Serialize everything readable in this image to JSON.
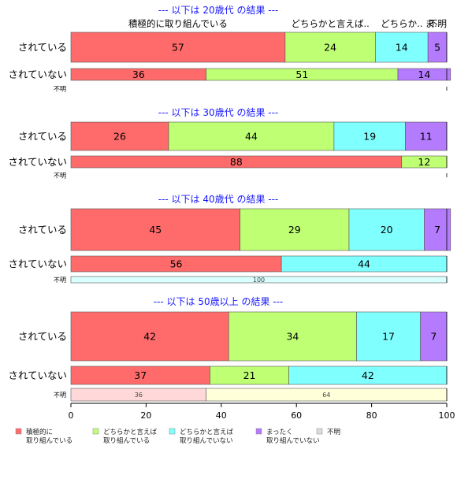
{
  "chart_data": {
    "type": "bar",
    "orientation": "horizontal",
    "stacked": true,
    "xlim": [
      0,
      100
    ],
    "x_ticks": [
      0,
      20,
      40,
      60,
      80,
      100
    ],
    "categories": [
      "積極的に取り組んでいる",
      "どちらかと言えば取り組んでいる",
      "どちらかと言えば取り組んでいない",
      "まったく取り組んでいない",
      "不明"
    ],
    "category_colors": [
      "#ff6b6b",
      "#bfff73",
      "#80ffff",
      "#b57bff",
      "#dcdcdc"
    ],
    "top_labels": [
      "積極的に取り組んでいる",
      "どちらかと言えば..",
      "どちらか..",
      "ま..",
      "不明"
    ],
    "legend": {
      "position": "bottom",
      "items": [
        "積極的に\n取り組んでいる",
        "どちらかと言えば\n取り組んでいる",
        "どちらかと言えば\n取り組んでいない",
        "まったく\n取り組んでいない",
        "不明"
      ]
    },
    "panels": [
      {
        "title": "--- 以下は 20歳代 の結果 ---",
        "rows": [
          {
            "label": "されている",
            "values": [
              57,
              24,
              14,
              5,
              0
            ]
          },
          {
            "label": "されていない",
            "values": [
              36,
              51,
              0,
              14,
              0
            ]
          },
          {
            "label": "不明",
            "values": [
              0,
              0,
              0,
              0,
              0
            ],
            "small": true
          }
        ]
      },
      {
        "title": "--- 以下は 30歳代 の結果 ---",
        "rows": [
          {
            "label": "されている",
            "values": [
              26,
              44,
              19,
              11,
              0
            ]
          },
          {
            "label": "されていない",
            "values": [
              88,
              12,
              0,
              0,
              0
            ]
          },
          {
            "label": "不明",
            "values": [
              0,
              0,
              0,
              0,
              0
            ],
            "small": true
          }
        ]
      },
      {
        "title": "--- 以下は 40歳代 の結果 ---",
        "rows": [
          {
            "label": "されている",
            "values": [
              45,
              29,
              20,
              7,
              0
            ]
          },
          {
            "label": "されていない",
            "values": [
              56,
              0,
              44,
              0,
              0
            ]
          },
          {
            "label": "不明",
            "values": [
              0,
              0,
              100,
              0,
              0
            ],
            "small": true,
            "pale": true
          }
        ]
      },
      {
        "title": "--- 以下は 50歳以上 の結果 ---",
        "rows": [
          {
            "label": "されている",
            "values": [
              42,
              34,
              17,
              7,
              0
            ]
          },
          {
            "label": "されていない",
            "values": [
              37,
              21,
              42,
              0,
              0
            ]
          },
          {
            "label": "不明",
            "values": [
              36,
              0,
              0,
              0,
              64
            ],
            "small": true,
            "pale": true,
            "pale_colors": [
              "#ffd9d9",
              "",
              "",
              "",
              "#ffffd9"
            ]
          }
        ]
      }
    ]
  }
}
